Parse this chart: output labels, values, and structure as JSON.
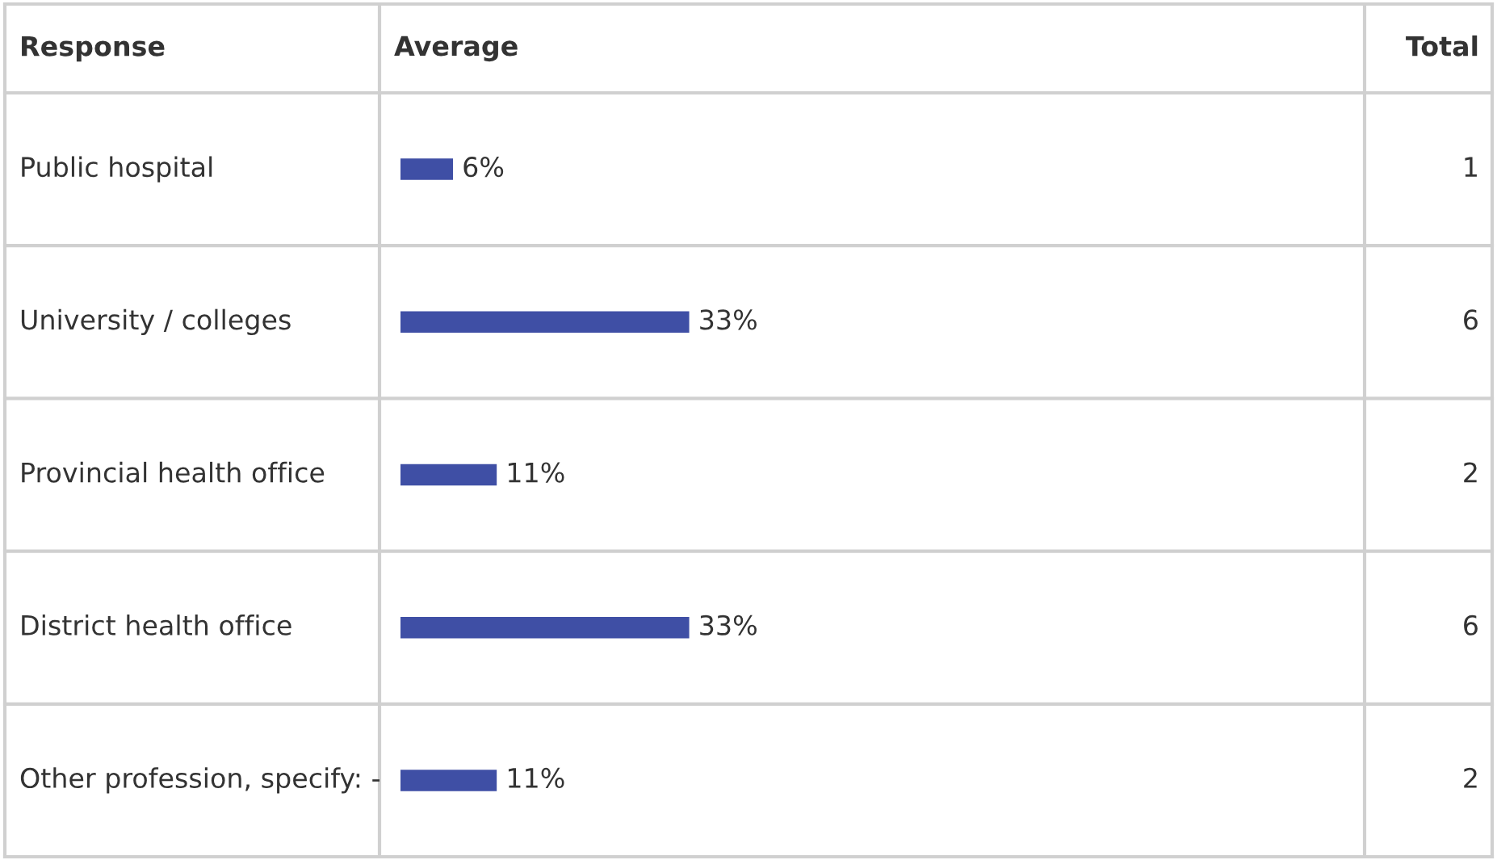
{
  "chart_data": {
    "type": "bar",
    "orientation": "horizontal",
    "ylabel": "Response",
    "xlabel": "Average",
    "categories": [
      "Public hospital",
      "University / colleges",
      "Provincial health office",
      "District health office",
      "Other profession, specify: -"
    ],
    "values": [
      6,
      33,
      11,
      33,
      11
    ],
    "value_labels": [
      "6%",
      "33%",
      "11%",
      "33%",
      "11%"
    ],
    "color": "#3f4fa5",
    "annotations": [
      "Total",
      "1",
      "6",
      "2",
      "6",
      "2"
    ]
  }
}
